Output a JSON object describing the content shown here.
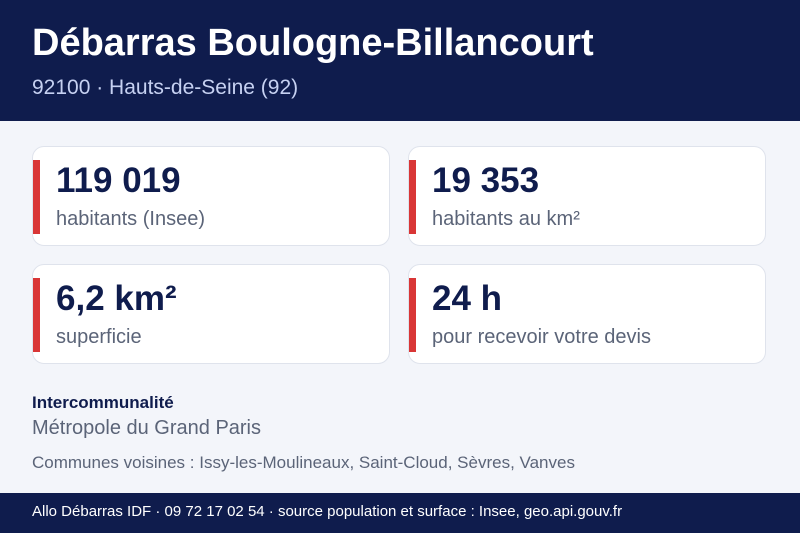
{
  "header": {
    "title": "Débarras Boulogne-Billancourt",
    "subtitle": "92100 · Hauts-de-Seine (92)"
  },
  "stats": [
    {
      "value": "119 019",
      "label": "habitants (Insee)"
    },
    {
      "value": "19 353",
      "label": "habitants au km²"
    },
    {
      "value": "6,2 km²",
      "label": "superficie"
    },
    {
      "value": "24 h",
      "label": "pour recevoir votre devis"
    }
  ],
  "intercommunalite": {
    "title": "Intercommunalité",
    "value": "Métropole du Grand Paris"
  },
  "neighbors": "Communes voisines : Issy-les-Moulineaux, Saint-Cloud, Sèvres, Vanves",
  "footer": {
    "text": "Allo Débarras IDF · 09 72 17 02 54 · source population et surface : Insee, geo.api.gouv.fr"
  },
  "colors": {
    "navy": "#0f1c4d",
    "accent_red": "#d93636",
    "background": "#f3f5fa"
  }
}
